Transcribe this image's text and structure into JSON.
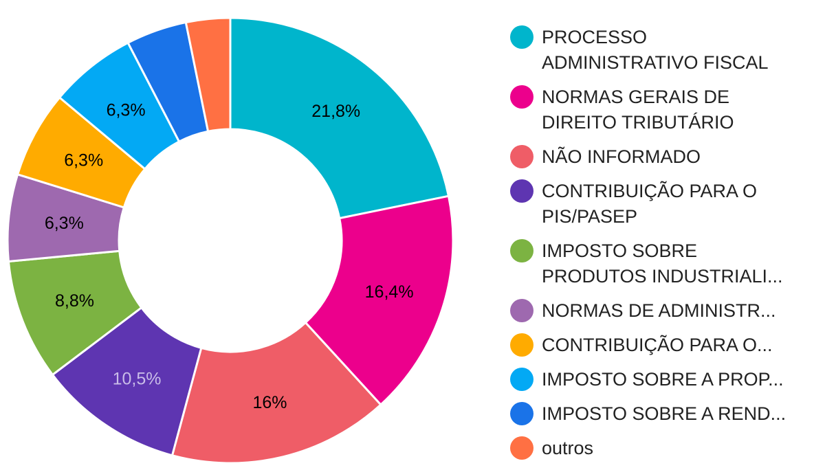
{
  "chart_data": {
    "type": "pie",
    "donut": true,
    "legend_position": "right",
    "slices": [
      {
        "name": "PROCESSO\nADMINISTRATIVO FISCAL",
        "value": 21.8,
        "label": "21,8%",
        "color": "#00B5CC",
        "label_color": "#000000"
      },
      {
        "name": "NORMAS GERAIS DE\nDIREITO TRIBUTÁRIO",
        "value": 16.4,
        "label": "16,4%",
        "color": "#EC008C",
        "label_color": "#000000"
      },
      {
        "name": "NÃO INFORMADO",
        "value": 16,
        "label": "16%",
        "color": "#EF5D67",
        "label_color": "#000000"
      },
      {
        "name": "CONTRIBUIÇÃO PARA O\nPIS/PASEP",
        "value": 10.5,
        "label": "10,5%",
        "color": "#5E35B1",
        "label_color": "#C9BCE8"
      },
      {
        "name": "IMPOSTO SOBRE\nPRODUTOS INDUSTRIALI...",
        "value": 8.8,
        "label": "8,8%",
        "color": "#7CB342",
        "label_color": "#000000"
      },
      {
        "name": "NORMAS DE ADMINISTR...",
        "value": 6.3,
        "label": "6,3%",
        "color": "#9E69AF",
        "label_color": "#000000"
      },
      {
        "name": "CONTRIBUIÇÃO PARA O...",
        "value": 6.3,
        "label": "6,3%",
        "color": "#FFAB00",
        "label_color": "#000000"
      },
      {
        "name": "IMPOSTO SOBRE A PROP...",
        "value": 6.3,
        "label": "6,3%",
        "color": "#03A9F4",
        "label_color": "#000000"
      },
      {
        "name": "IMPOSTO SOBRE A REND...",
        "value": 4.4,
        "label": "",
        "color": "#1A73E8",
        "label_color": "#000000"
      },
      {
        "name": "outros",
        "value": 3.2,
        "label": "",
        "color": "#FF7043",
        "label_color": "#000000"
      }
    ]
  }
}
